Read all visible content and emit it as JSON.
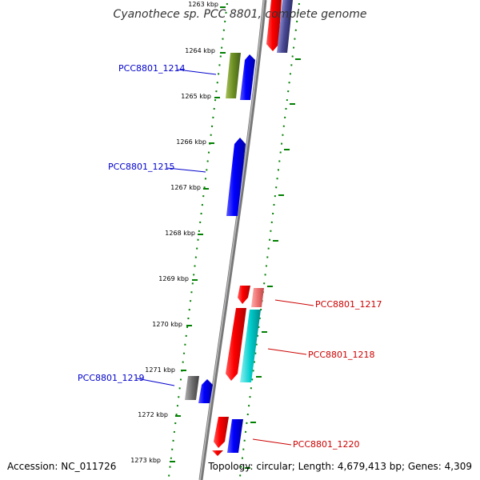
{
  "title": "Cyanothece sp. PCC 8801, complete genome",
  "footer": {
    "accession": "Accession: NC_011726",
    "topology": "Topology: circular; Length: 4,679,413 bp; Genes: 4,309"
  },
  "ticks": [
    "1263 kbp",
    "1264 kbp",
    "1265 kbp",
    "1266 kbp",
    "1267 kbp",
    "1268 kbp",
    "1269 kbp",
    "1270 kbp",
    "1271 kbp",
    "1272 kbp",
    "1273 kbp"
  ],
  "gene_labels": {
    "g1214": "PCC8801_1214",
    "g1215": "PCC8801_1215",
    "g1217": "PCC8801_1217",
    "g1218": "PCC8801_1218",
    "g1219": "PCC8801_1219",
    "g1220": "PCC8801_1220"
  },
  "colors": {
    "backbone": "#888888",
    "tick": "#008000",
    "forward_label": "#0000cc",
    "reverse_label": "#cc0000"
  }
}
